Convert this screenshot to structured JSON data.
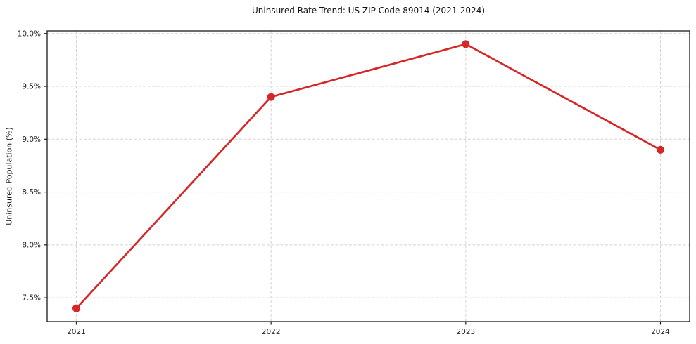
{
  "figure": {
    "background": "#ffffff"
  },
  "chart_data": {
    "type": "line",
    "title": "Uninsured Rate Trend: US ZIP Code 89014 (2021-2024)",
    "xlabel": "",
    "ylabel": "Uninsured Population (%)",
    "categories": [
      "2021",
      "2022",
      "2023",
      "2024"
    ],
    "values": [
      7.4,
      9.4,
      9.9,
      8.9
    ],
    "yticks": [
      7.5,
      8.0,
      8.5,
      9.0,
      9.5,
      10.0
    ],
    "ytick_labels": [
      "7.5%",
      "8.0%",
      "8.5%",
      "9.0%",
      "9.5%",
      "10.0%"
    ],
    "ylim": [
      7.275,
      10.025
    ],
    "x_margin_fraction": 0.05,
    "grid": true,
    "grid_style": "dashed",
    "legend_position": "none",
    "marker": "circle",
    "colors": {
      "line": "#d62728",
      "marker": "#d62728",
      "grid": "#d4d4d4",
      "axis": "#1a1a1a",
      "tick_text": "#262626",
      "title_text": "#111111"
    }
  }
}
